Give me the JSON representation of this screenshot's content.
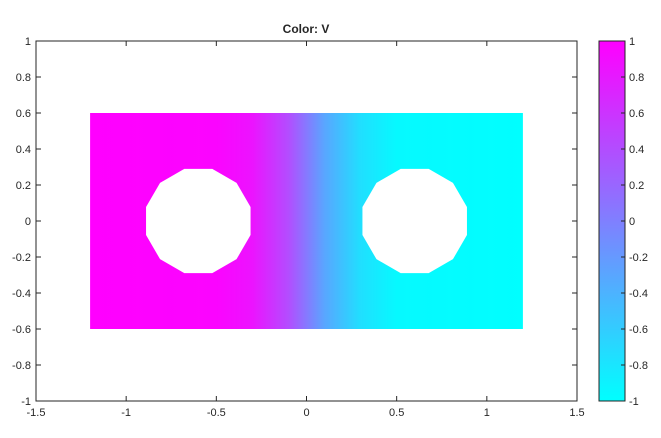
{
  "chart_data": {
    "type": "heatmap",
    "title": "Color: V",
    "xlim": [
      -1.5,
      1.5
    ],
    "ylim": [
      -1,
      1
    ],
    "xticks": [
      "-1.5",
      "-1",
      "-0.5",
      "0",
      "0.5",
      "1",
      "1.5"
    ],
    "xtick_values": [
      -1.5,
      -1,
      -0.5,
      0,
      0.5,
      1,
      1.5
    ],
    "yticks": [
      "1",
      "0.8",
      "0.6",
      "0.4",
      "0.2",
      "0",
      "-0.2",
      "-0.4",
      "-0.6",
      "-0.8",
      "-1"
    ],
    "ytick_values": [
      1,
      0.8,
      0.6,
      0.4,
      0.2,
      0,
      -0.2,
      -0.4,
      -0.6,
      -0.8,
      -1
    ],
    "domain": {
      "rectangle": {
        "xmin": -1.2,
        "xmax": 1.2,
        "ymin": -0.6,
        "ymax": 0.6
      },
      "holes": [
        {
          "cx": -0.6,
          "cy": 0,
          "r": 0.3,
          "sides": 12
        },
        {
          "cx": 0.6,
          "cy": 0,
          "r": 0.3,
          "sides": 12
        }
      ]
    },
    "field_profile_x": [
      -1.2,
      -0.5,
      -0.3,
      -0.1,
      0,
      0.1,
      0.3,
      0.5,
      1.2
    ],
    "field_profile_v": [
      1,
      0.97,
      0.85,
      0.4,
      0.05,
      -0.3,
      -0.75,
      -0.95,
      -1
    ],
    "colormap": "cool",
    "colormap_low": "#00ffff",
    "colormap_high": "#ff00ff",
    "colorbar": {
      "range": [
        -1,
        1
      ],
      "ticks": [
        "1",
        "0.8",
        "0.6",
        "0.4",
        "0.2",
        "0",
        "-0.2",
        "-0.4",
        "-0.6",
        "-0.8",
        "-1"
      ],
      "tick_values": [
        1,
        0.8,
        0.6,
        0.4,
        0.2,
        0,
        -0.2,
        -0.4,
        -0.6,
        -0.8,
        -1
      ]
    }
  }
}
